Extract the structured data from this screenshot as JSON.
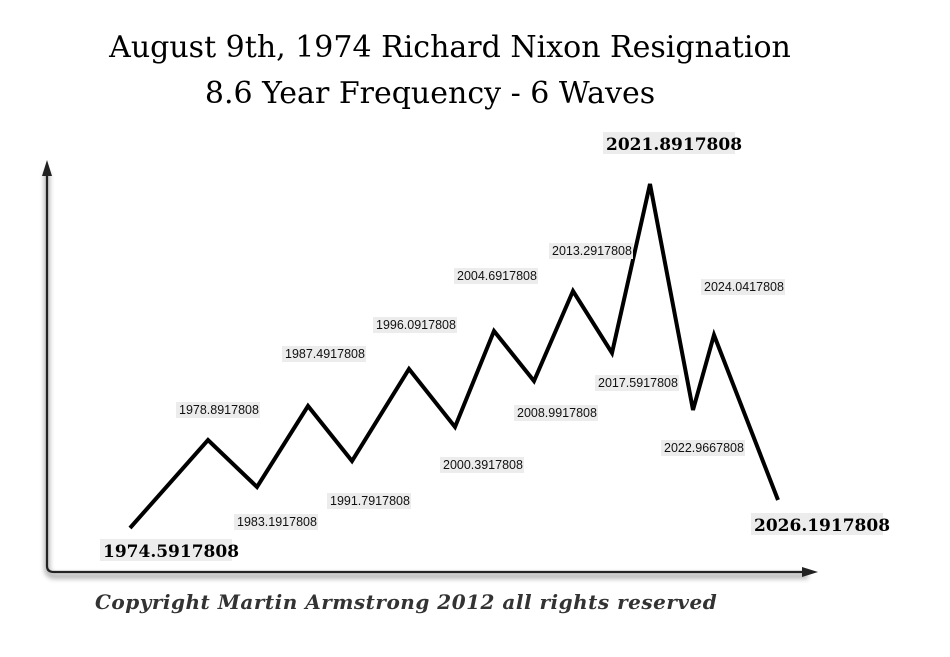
{
  "chart_data": {
    "type": "line",
    "title": "August 9th, 1974 Richard Nixon Resignation",
    "subtitle": "8.6 Year Frequency - 6 Waves",
    "xlabel": "",
    "ylabel": "",
    "points": [
      {
        "x": 1974.5917808,
        "label": "1974.5917808",
        "kind": "low",
        "emphasis": true
      },
      {
        "x": 1978.8917808,
        "label": "1978.8917808",
        "kind": "high",
        "emphasis": false
      },
      {
        "x": 1983.1917808,
        "label": "1983.1917808",
        "kind": "low",
        "emphasis": false
      },
      {
        "x": 1987.4917808,
        "label": "1987.4917808",
        "kind": "high",
        "emphasis": false
      },
      {
        "x": 1991.7917808,
        "label": "1991.7917808",
        "kind": "low",
        "emphasis": false
      },
      {
        "x": 1996.0917808,
        "label": "1996.0917808",
        "kind": "high",
        "emphasis": false
      },
      {
        "x": 2000.3917808,
        "label": "2000.3917808",
        "kind": "low",
        "emphasis": false
      },
      {
        "x": 2004.6917808,
        "label": "2004.6917808",
        "kind": "high",
        "emphasis": false
      },
      {
        "x": 2008.9917808,
        "label": "2008.9917808",
        "kind": "low",
        "emphasis": false
      },
      {
        "x": 2013.2917808,
        "label": "2013.2917808",
        "kind": "high",
        "emphasis": false
      },
      {
        "x": 2017.5917808,
        "label": "2017.5917808",
        "kind": "low",
        "emphasis": false
      },
      {
        "x": 2021.8917808,
        "label": "2021.8917808",
        "kind": "high",
        "emphasis": true
      },
      {
        "x": 2022.9667808,
        "label": "2022.9667808",
        "kind": "low",
        "emphasis": false
      },
      {
        "x": 2024.0417808,
        "label": "2024.0417808",
        "kind": "high",
        "emphasis": false
      },
      {
        "x": 2026.1917808,
        "label": "2026.1917808",
        "kind": "low",
        "emphasis": true
      }
    ],
    "grid": false,
    "legend": "none"
  },
  "copyright": "Copyright Martin Armstrong 2012 all rights reserved",
  "colors": {
    "line": "#000000",
    "axis": "#222222"
  }
}
